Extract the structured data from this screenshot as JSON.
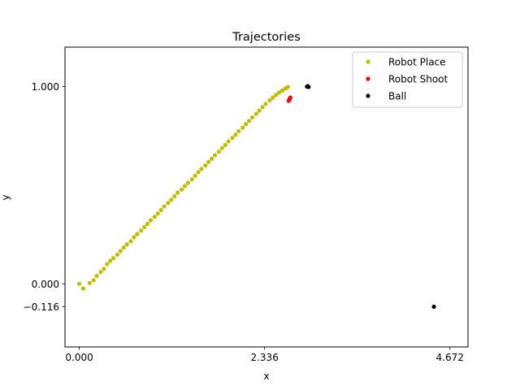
{
  "chart_data": {
    "type": "scatter",
    "title": "Trajectories",
    "xlabel": "x",
    "ylabel": "y",
    "xlim": [
      -0.18,
      4.9
    ],
    "ylim": [
      -0.32,
      1.2
    ],
    "xticks": [
      {
        "value": 0.0,
        "label": "0.000"
      },
      {
        "value": 2.336,
        "label": "2.336"
      },
      {
        "value": 4.672,
        "label": "4.672"
      }
    ],
    "yticks": [
      {
        "value": 1.0,
        "label": "1.000"
      },
      {
        "value": 0.0,
        "label": "0.000"
      },
      {
        "value": -0.116,
        "label": "−0.116"
      }
    ],
    "grid": false,
    "legend_position": "top-right",
    "series": [
      {
        "name": "Robot Place",
        "color": "#bfbf00",
        "points": [
          [
            0.0,
            0.0
          ],
          [
            0.05,
            -0.024
          ],
          [
            0.13,
            0.004
          ],
          [
            0.18,
            0.018
          ],
          [
            0.22,
            0.04
          ],
          [
            0.27,
            0.06
          ],
          [
            0.31,
            0.076
          ],
          [
            0.35,
            0.1
          ],
          [
            0.39,
            0.116
          ],
          [
            0.43,
            0.13
          ],
          [
            0.48,
            0.148
          ],
          [
            0.52,
            0.166
          ],
          [
            0.56,
            0.184
          ],
          [
            0.6,
            0.2
          ],
          [
            0.65,
            0.216
          ],
          [
            0.69,
            0.236
          ],
          [
            0.73,
            0.252
          ],
          [
            0.78,
            0.27
          ],
          [
            0.82,
            0.288
          ],
          [
            0.86,
            0.304
          ],
          [
            0.9,
            0.322
          ],
          [
            0.95,
            0.34
          ],
          [
            0.99,
            0.356
          ],
          [
            1.03,
            0.374
          ],
          [
            1.07,
            0.392
          ],
          [
            1.12,
            0.41
          ],
          [
            1.16,
            0.426
          ],
          [
            1.2,
            0.444
          ],
          [
            1.24,
            0.462
          ],
          [
            1.29,
            0.478
          ],
          [
            1.33,
            0.496
          ],
          [
            1.37,
            0.512
          ],
          [
            1.42,
            0.53
          ],
          [
            1.46,
            0.548
          ],
          [
            1.5,
            0.566
          ],
          [
            1.54,
            0.582
          ],
          [
            1.59,
            0.6
          ],
          [
            1.63,
            0.618
          ],
          [
            1.67,
            0.634
          ],
          [
            1.71,
            0.652
          ],
          [
            1.76,
            0.67
          ],
          [
            1.8,
            0.688
          ],
          [
            1.84,
            0.704
          ],
          [
            1.88,
            0.722
          ],
          [
            1.93,
            0.74
          ],
          [
            1.97,
            0.756
          ],
          [
            2.01,
            0.774
          ],
          [
            2.06,
            0.792
          ],
          [
            2.1,
            0.81
          ],
          [
            2.14,
            0.826
          ],
          [
            2.18,
            0.844
          ],
          [
            2.23,
            0.862
          ],
          [
            2.27,
            0.878
          ],
          [
            2.31,
            0.896
          ],
          [
            2.35,
            0.912
          ],
          [
            2.4,
            0.93
          ],
          [
            2.44,
            0.944
          ],
          [
            2.48,
            0.958
          ],
          [
            2.52,
            0.97
          ],
          [
            2.56,
            0.98
          ],
          [
            2.6,
            0.99
          ],
          [
            2.63,
            0.998
          ]
        ]
      },
      {
        "name": "Robot Shoot",
        "color": "#ff0000",
        "points": [
          [
            2.64,
            0.928
          ],
          [
            2.65,
            0.936
          ],
          [
            2.66,
            0.944
          ]
        ]
      },
      {
        "name": "Ball",
        "color": "#000000",
        "points": [
          [
            2.87,
            1.0
          ],
          [
            2.88,
            1.002
          ],
          [
            2.89,
            0.998
          ],
          [
            4.47,
            -0.116
          ]
        ]
      }
    ]
  }
}
